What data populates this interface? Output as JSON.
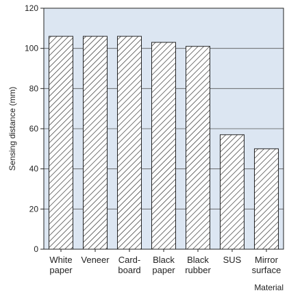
{
  "chart_data": {
    "type": "bar",
    "categories": [
      [
        "White",
        "paper"
      ],
      [
        "Veneer"
      ],
      [
        "Card-",
        "board"
      ],
      [
        "Black",
        "paper"
      ],
      [
        "Black",
        "rubber"
      ],
      [
        "SUS"
      ],
      [
        "Mirror",
        "surface"
      ]
    ],
    "values": [
      106,
      106,
      106,
      103,
      101,
      57,
      50
    ],
    "xlabel": "Material",
    "ylabel": "Sensing distance (mm)",
    "ylim": [
      0,
      120
    ],
    "yticks": [
      0,
      20,
      40,
      60,
      80,
      100,
      120
    ],
    "grid": "horizontal",
    "plot_background": "#dce6f2",
    "bar_fill": "hatched",
    "bar_color": "#ffffff",
    "line_color": "#222222"
  }
}
